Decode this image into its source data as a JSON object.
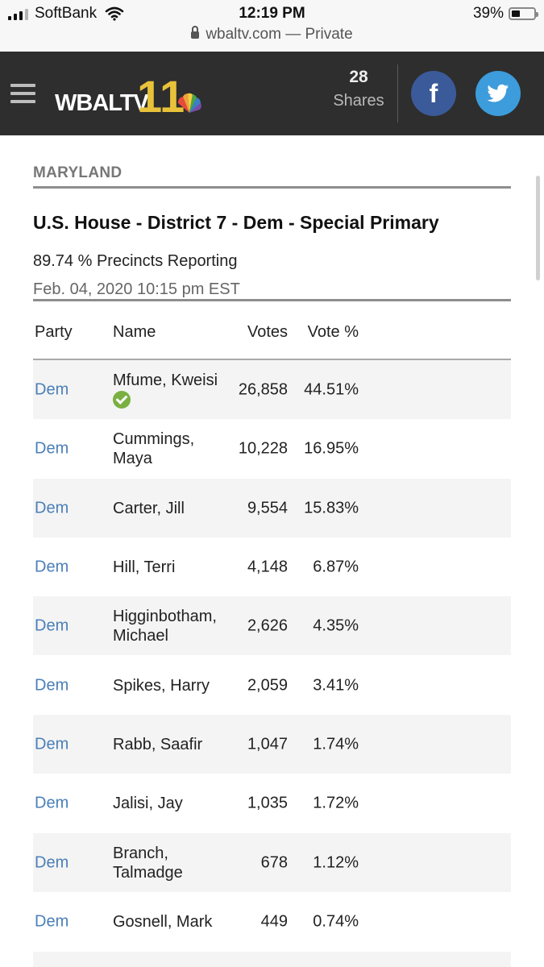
{
  "status_bar": {
    "carrier": "SoftBank",
    "time": "12:19 PM",
    "battery": "39%",
    "battery_level": 0.39,
    "url": "wbaltv.com",
    "private_label": "— Private"
  },
  "header": {
    "logo_text": "WBALTV",
    "logo_number": "11",
    "shares_count": "28",
    "shares_label": "Shares",
    "facebook_glyph": "f",
    "colors": {
      "header_bg": "#2e2e2e",
      "facebook": "#3b5a9a",
      "twitter": "#3d9cdb",
      "logo_gold": "#e8c23a"
    }
  },
  "article": {
    "section": "MARYLAND",
    "title": "U.S. House - District 7 - Dem - Special Primary",
    "precincts": "89.74 % Precincts Reporting",
    "datetime": "Feb. 04, 2020 10:15 pm EST"
  },
  "table": {
    "headers": {
      "party": "Party",
      "name": "Name",
      "votes": "Votes",
      "pct": "Vote %"
    },
    "rows": [
      {
        "party": "Dem",
        "name_line1": "Mfume, Kweisi",
        "name_line2": "",
        "winner": true,
        "votes": "26,858",
        "pct": "44.51%"
      },
      {
        "party": "Dem",
        "name_line1": "Cummings,",
        "name_line2": "Maya",
        "winner": false,
        "votes": "10,228",
        "pct": "16.95%"
      },
      {
        "party": "Dem",
        "name_line1": "Carter, Jill",
        "name_line2": "",
        "winner": false,
        "votes": "9,554",
        "pct": "15.83%"
      },
      {
        "party": "Dem",
        "name_line1": "Hill, Terri",
        "name_line2": "",
        "winner": false,
        "votes": "4,148",
        "pct": "6.87%"
      },
      {
        "party": "Dem",
        "name_line1": "Higginbotham,",
        "name_line2": "Michael",
        "winner": false,
        "votes": "2,626",
        "pct": "4.35%"
      },
      {
        "party": "Dem",
        "name_line1": "Spikes, Harry",
        "name_line2": "",
        "winner": false,
        "votes": "2,059",
        "pct": "3.41%"
      },
      {
        "party": "Dem",
        "name_line1": "Rabb, Saafir",
        "name_line2": "",
        "winner": false,
        "votes": "1,047",
        "pct": "1.74%"
      },
      {
        "party": "Dem",
        "name_line1": "Jalisi, Jay",
        "name_line2": "",
        "winner": false,
        "votes": "1,035",
        "pct": "1.72%"
      },
      {
        "party": "Dem",
        "name_line1": "Branch,",
        "name_line2": "Talmadge",
        "winner": false,
        "votes": "678",
        "pct": "1.12%"
      },
      {
        "party": "Dem",
        "name_line1": "Gosnell, Mark",
        "name_line2": "",
        "winner": false,
        "votes": "449",
        "pct": "0.74%"
      }
    ]
  }
}
